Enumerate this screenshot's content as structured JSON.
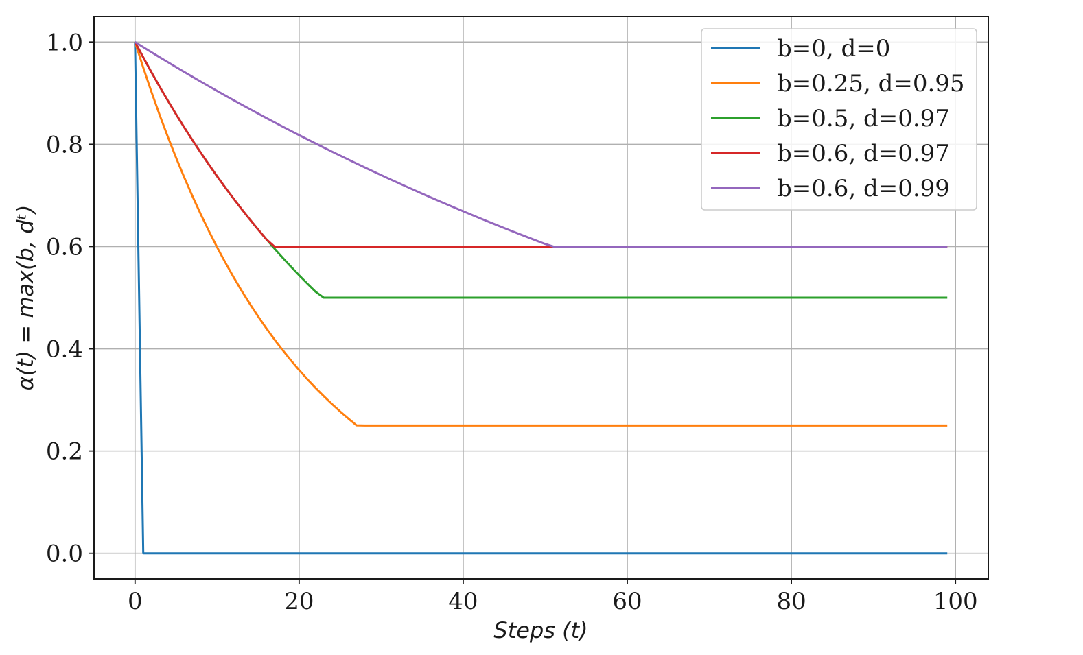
{
  "chart_data": {
    "type": "line",
    "title": "",
    "xlabel": "Steps (t)",
    "ylabel": "α(t) = max(b, dᵗ)",
    "xlim": [
      -5,
      104
    ],
    "ylim": [
      -0.05,
      1.05
    ],
    "xticks": [
      0,
      20,
      40,
      60,
      80,
      100
    ],
    "yticks": [
      0.0,
      0.2,
      0.4,
      0.6,
      0.8,
      1.0
    ],
    "xtick_labels": [
      "0",
      "20",
      "40",
      "60",
      "80",
      "100"
    ],
    "ytick_labels": [
      "0.0",
      "0.2",
      "0.4",
      "0.6",
      "0.8",
      "1.0"
    ],
    "grid": true,
    "legend_position": "top-right",
    "x_range": [
      0,
      99
    ],
    "series": [
      {
        "name": "b=0, d=0",
        "b": 0,
        "d": 0,
        "color": "#1f77b4"
      },
      {
        "name": "b=0.25, d=0.95",
        "b": 0.25,
        "d": 0.95,
        "color": "#ff7f0e"
      },
      {
        "name": "b=0.5, d=0.97",
        "b": 0.5,
        "d": 0.97,
        "color": "#2ca02c"
      },
      {
        "name": "b=0.6, d=0.97",
        "b": 0.6,
        "d": 0.97,
        "color": "#d62728"
      },
      {
        "name": "b=0.6, d=0.99",
        "b": 0.6,
        "d": 0.99,
        "color": "#9467bd"
      }
    ]
  }
}
